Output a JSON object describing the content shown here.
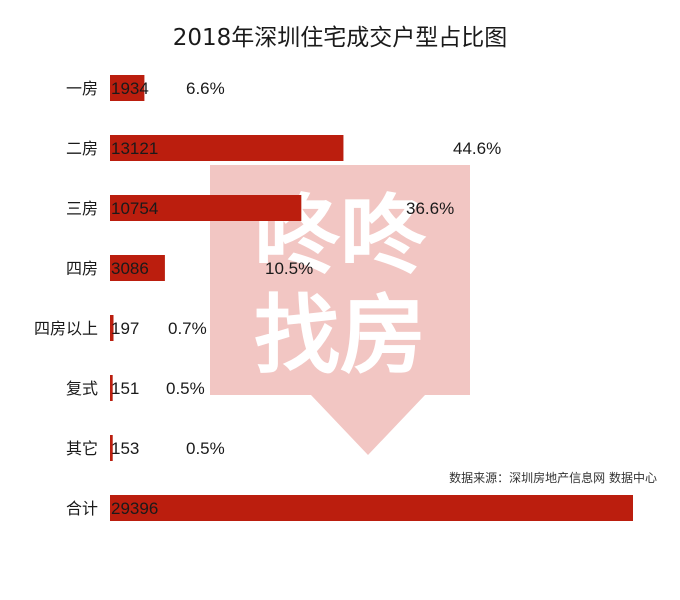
{
  "chart_data": {
    "type": "bar",
    "orientation": "horizontal",
    "title": "2018年深圳住宅成交户型占比图",
    "categories": [
      "一房",
      "二房",
      "三房",
      "四房",
      "四房以上",
      "复式",
      "其它",
      "合计"
    ],
    "values": [
      1934,
      13121,
      10754,
      3086,
      197,
      151,
      153,
      29396
    ],
    "value_labels": [
      "1934",
      "13121",
      "10754",
      "3086",
      "197",
      "151",
      "153",
      "29396"
    ],
    "percent_labels": [
      "6.6%",
      "44.6%",
      "36.6%",
      "10.5%",
      "0.7%",
      "0.5%",
      "0.5%",
      ""
    ],
    "xlim": [
      0,
      29396
    ],
    "grid": false,
    "legend": "none",
    "bar_color": "#bb1e0e",
    "source_note": "数据来源：深圳房地产信息网 数据中心"
  },
  "watermark": {
    "text_top": "咚咚",
    "text_bottom": "找房",
    "color": "#f2c6c3"
  }
}
